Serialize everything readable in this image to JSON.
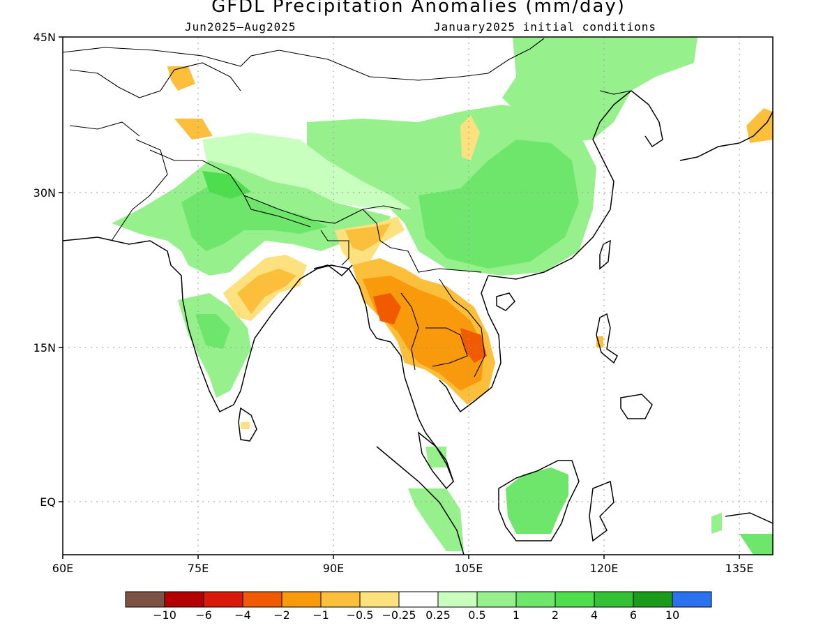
{
  "header": {
    "title": "GFDL Precipitation Anomalies (mm/day)",
    "period": "Jun2025–Aug2025",
    "init": "January2025 initial conditions"
  },
  "axes": {
    "lat_ticks": [
      "45N",
      "30N",
      "15N",
      "EQ"
    ],
    "lon_ticks": [
      "60E",
      "75E",
      "90E",
      "105E",
      "120E",
      "135E"
    ]
  },
  "colorbar": {
    "colors": [
      "#7b5244",
      "#b30000",
      "#d91a0a",
      "#f05a00",
      "#f99a0c",
      "#fcbf3c",
      "#fde17e",
      "#ffffff",
      "#c8ffbe",
      "#96f08c",
      "#6ee66b",
      "#4ddd4d",
      "#33c233",
      "#1a9c1a",
      "#2a72f0"
    ],
    "labels": [
      "−10",
      "−6",
      "−4",
      "−2",
      "−1",
      "−0.5",
      "−0.25",
      "0.25",
      "0.5",
      "1",
      "2",
      "4",
      "6",
      "10"
    ]
  },
  "map_regions": [
    {
      "name": "north-india-wet",
      "color": "#6ee66b"
    },
    {
      "name": "china-wet",
      "color": "#6ee66b"
    },
    {
      "name": "indochina-dry",
      "color": "#f99a0c"
    },
    {
      "name": "borneo-wet",
      "color": "#6ee66b"
    }
  ]
}
